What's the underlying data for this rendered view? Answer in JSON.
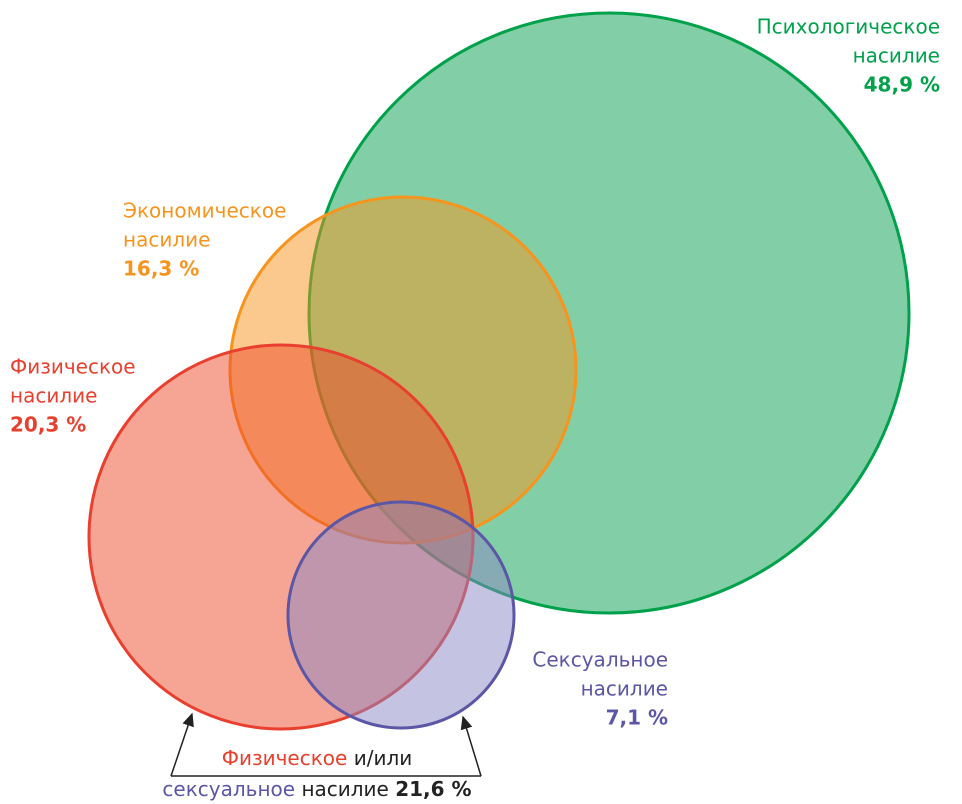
{
  "circles": [
    {
      "line1": "Психологическое",
      "line2": "насилие",
      "value": "48,9 %"
    },
    {
      "line1": "Экономическое",
      "line2": "насилие",
      "value": "16,3 %"
    },
    {
      "line1": "Физическое",
      "line2": "насилие",
      "value": "20,3 %"
    },
    {
      "line1": "Сексуальное",
      "line2": "насилие",
      "value": "7,1 %"
    }
  ],
  "combined": {
    "part1": "Физическое",
    "part2": "и/или",
    "part3": "сексуальное",
    "part4": "насилие",
    "value": "21,6 %"
  }
}
